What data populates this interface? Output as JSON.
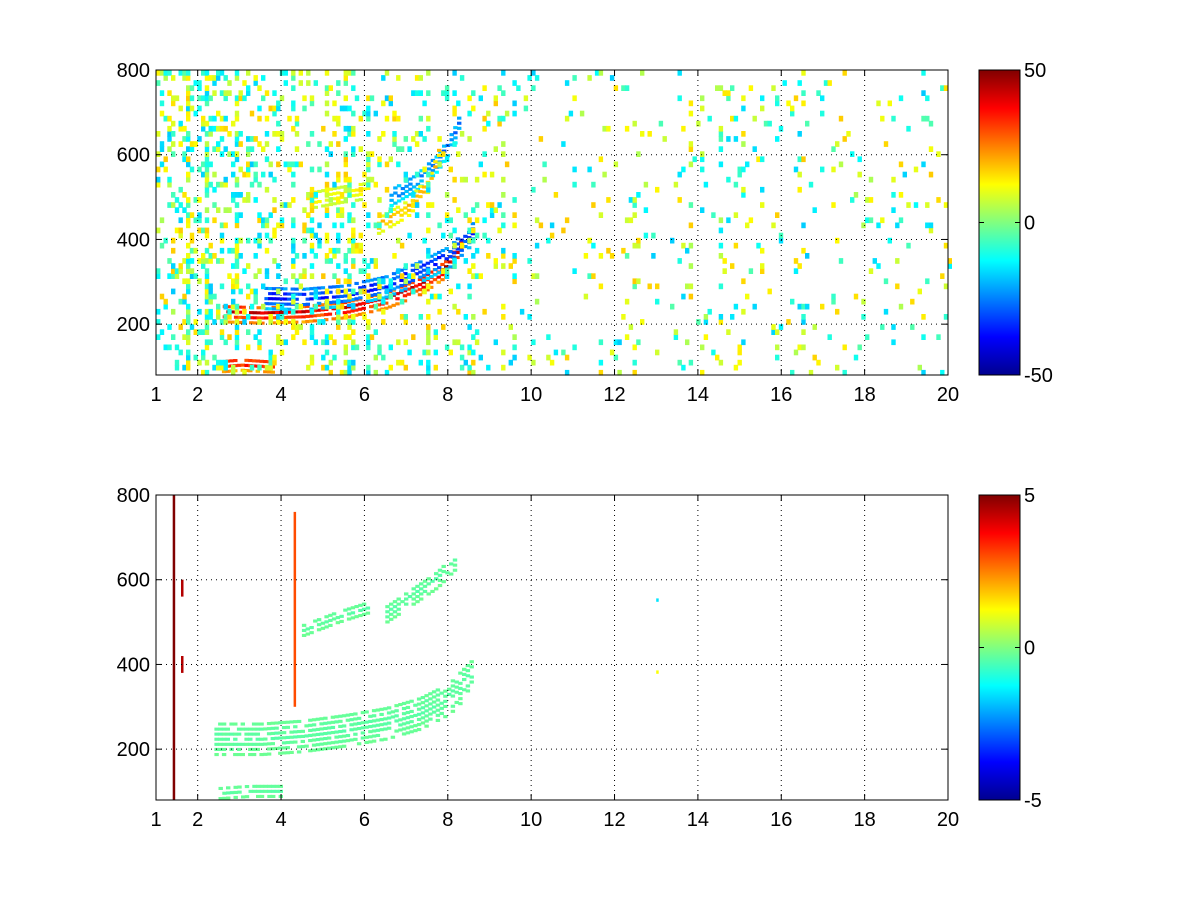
{
  "chart_data": [
    {
      "type": "heatmap",
      "title": "",
      "xlabel": "",
      "ylabel": "",
      "xlim": [
        1,
        20
      ],
      "ylim": [
        80,
        800
      ],
      "xticks": [
        1,
        2,
        4,
        6,
        8,
        10,
        12,
        14,
        16,
        18,
        20
      ],
      "yticks": [
        200,
        400,
        600,
        800
      ],
      "grid": true,
      "colormap": "jet",
      "clim": [
        -50,
        50
      ],
      "colorbar_ticks": [
        -50,
        0,
        50
      ],
      "features": [
        {
          "kind": "band",
          "x": [
            2.6,
            3.5,
            4.5,
            5.5,
            6.5,
            7.3,
            7.9,
            8.3
          ],
          "y": [
            225,
            222,
            225,
            235,
            258,
            290,
            330,
            380
          ],
          "value": 45,
          "thickness": 22
        },
        {
          "kind": "band",
          "x": [
            3.6,
            4.5,
            5.5,
            6.5,
            7.3,
            8.0,
            8.6
          ],
          "y": [
            262,
            260,
            268,
            290,
            325,
            360,
            420
          ],
          "value": -38,
          "thickness": 28
        },
        {
          "kind": "band",
          "x": [
            6.6,
            7.2,
            7.7,
            8.1,
            8.3
          ],
          "y": [
            500,
            535,
            580,
            640,
            690
          ],
          "value": -30,
          "thickness": 22
        },
        {
          "kind": "band",
          "x": [
            6.3,
            7.0,
            7.5,
            7.8
          ],
          "y": [
            430,
            470,
            530,
            620
          ],
          "value": 22,
          "thickness": 18
        },
        {
          "kind": "band",
          "x": [
            2.4,
            3.0,
            3.8
          ],
          "y": [
            100,
            105,
            100
          ],
          "value": 42,
          "thickness": 16
        },
        {
          "kind": "band",
          "x": [
            4.6,
            5.4,
            6.1
          ],
          "y": [
            490,
            505,
            515
          ],
          "value": 15,
          "thickness": 20
        }
      ]
    },
    {
      "type": "heatmap",
      "title": "",
      "xlabel": "",
      "ylabel": "",
      "xlim": [
        1,
        20
      ],
      "ylim": [
        80,
        800
      ],
      "xticks": [
        1,
        2,
        4,
        6,
        8,
        10,
        12,
        14,
        16,
        18,
        20
      ],
      "yticks": [
        200,
        400,
        600,
        800
      ],
      "grid": true,
      "colormap": "jet",
      "clim": [
        -5,
        5
      ],
      "colorbar_ticks": [
        -5,
        0,
        5
      ],
      "features": [
        {
          "kind": "band",
          "x": [
            2.4,
            3.5,
            4.5,
            5.5,
            6.5,
            7.3,
            8.0,
            8.6
          ],
          "y": [
            225,
            225,
            232,
            245,
            262,
            285,
            320,
            380
          ],
          "value": -0.4,
          "thickness": 40
        },
        {
          "kind": "band",
          "x": [
            6.5,
            7.1,
            7.7,
            8.2
          ],
          "y": [
            520,
            560,
            600,
            650
          ],
          "value": -0.4,
          "thickness": 22
        },
        {
          "kind": "band",
          "x": [
            4.5,
            5.3,
            6.1
          ],
          "y": [
            480,
            510,
            535
          ],
          "value": -0.4,
          "thickness": 14
        },
        {
          "kind": "band",
          "x": [
            2.5,
            3.2,
            4.0
          ],
          "y": [
            95,
            100,
            100
          ],
          "value": -0.4,
          "thickness": 14
        }
      ],
      "outliers": [
        {
          "x": 1.4,
          "y": [
            80,
            800
          ],
          "value": 5
        },
        {
          "x": 1.6,
          "y": [
            560,
            600
          ],
          "value": 4.5
        },
        {
          "x": 1.6,
          "y": [
            380,
            420
          ],
          "value": 4.5
        },
        {
          "x": 4.3,
          "y": [
            300,
            760
          ],
          "value": 3
        },
        {
          "x": 13.0,
          "y": [
            378,
            386
          ],
          "value": 1.2
        },
        {
          "x": 13.0,
          "y": [
            548,
            556
          ],
          "value": -1.5
        }
      ]
    }
  ]
}
